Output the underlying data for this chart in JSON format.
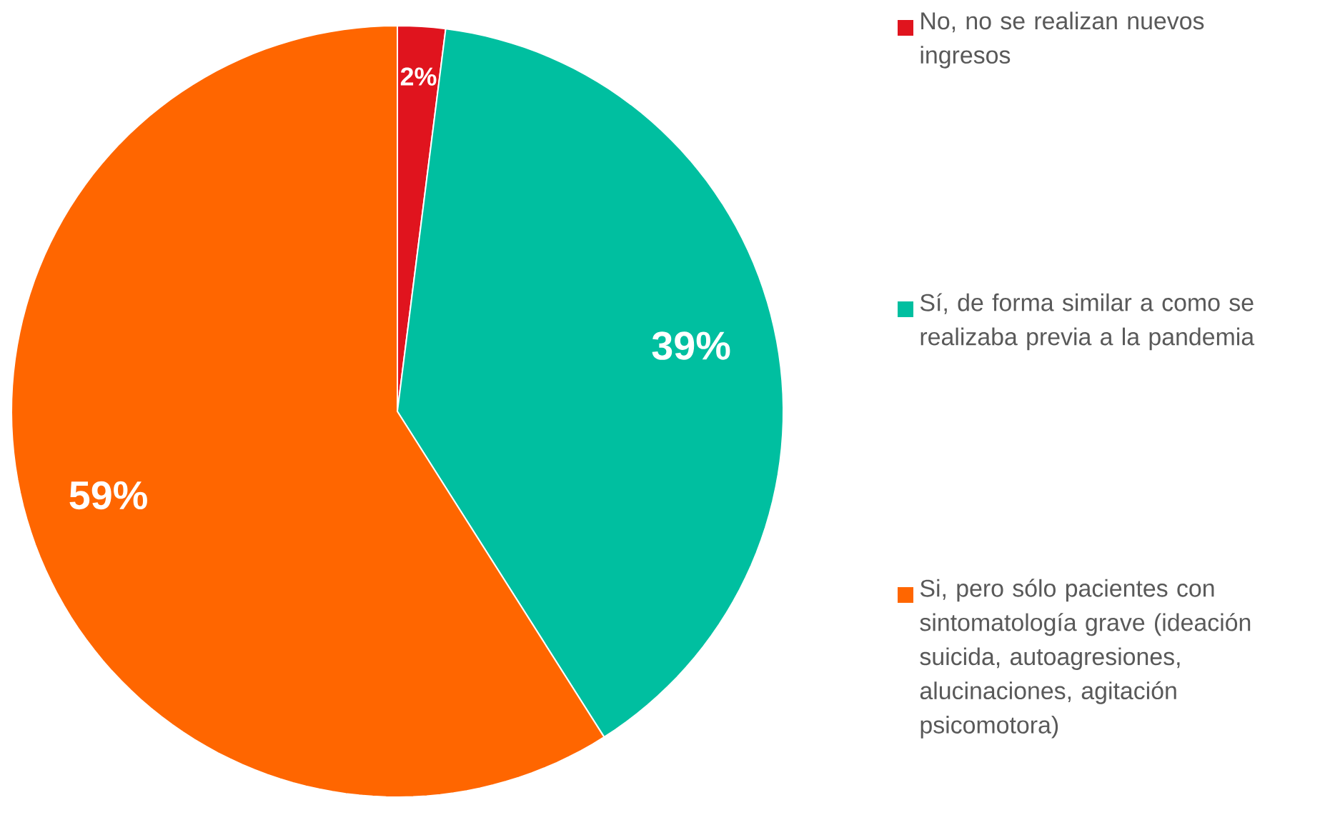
{
  "chart_data": {
    "type": "pie",
    "categories": [
      "No, no se realizan nuevos ingresos",
      "Sí, de forma similar a como se realizaba previa a la pandemia",
      "Si, pero sólo pacientes con sintomatología grave (ideación suicida, autoagresiones, alucinaciones, agitación psicomotora)"
    ],
    "values": [
      2,
      39,
      59
    ],
    "colors": [
      "#e0141e",
      "#00bfa0",
      "#ff6600"
    ],
    "value_labels": [
      "2%",
      "39%",
      "59%"
    ],
    "legend": "right"
  }
}
